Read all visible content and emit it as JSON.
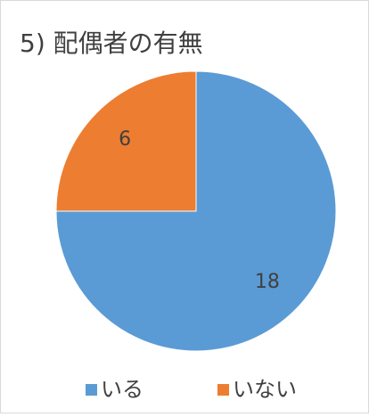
{
  "chart_data": {
    "type": "pie",
    "title": "5) 配偶者の有無",
    "categories": [
      "いる",
      "いない"
    ],
    "values": [
      18,
      6
    ],
    "colors": [
      "#5b9bd5",
      "#ed7d31"
    ],
    "legend": "bottom"
  }
}
